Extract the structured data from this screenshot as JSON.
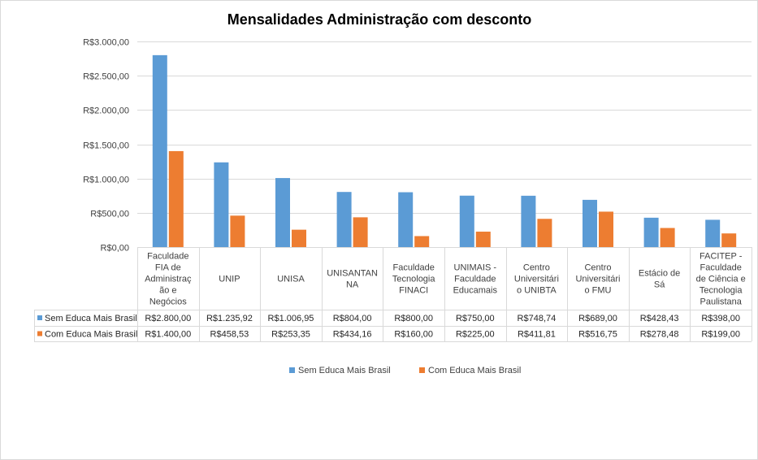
{
  "chart_data": {
    "type": "bar",
    "title": "Mensalidades Administração com desconto",
    "categories": [
      [
        "Faculdade",
        "FIA de",
        "Administraç",
        "ão e",
        "Negócios"
      ],
      [
        "UNIP"
      ],
      [
        "UNISA"
      ],
      [
        "UNISANTAN",
        "NA"
      ],
      [
        "Faculdade",
        "Tecnologia",
        "FINACI"
      ],
      [
        "UNIMAIS -",
        "Faculdade",
        "Educamais"
      ],
      [
        "Centro",
        "Universitári",
        "o UNIBTA"
      ],
      [
        "Centro",
        "Universitári",
        "o FMU"
      ],
      [
        "Estácio de",
        "Sá"
      ],
      [
        "FACITEP -",
        "Faculdade",
        "de Ciência e",
        "Tecnologia",
        "Paulistana"
      ]
    ],
    "series": [
      {
        "name": "Sem Educa Mais Brasil",
        "color": "#5b9bd5",
        "values": [
          2800.0,
          1235.92,
          1006.95,
          804.0,
          800.0,
          750.0,
          748.74,
          689.0,
          428.43,
          398.0
        ],
        "labels": [
          "R$2.800,00",
          "R$1.235,92",
          "R$1.006,95",
          "R$804,00",
          "R$800,00",
          "R$750,00",
          "R$748,74",
          "R$689,00",
          "R$428,43",
          "R$398,00"
        ]
      },
      {
        "name": "Com Educa Mais Brasil",
        "color": "#ed7d31",
        "values": [
          1400.0,
          458.53,
          253.35,
          434.16,
          160.0,
          225.0,
          411.81,
          516.75,
          278.48,
          199.0
        ],
        "labels": [
          "R$1.400,00",
          "R$458,53",
          "R$253,35",
          "R$434,16",
          "R$160,00",
          "R$225,00",
          "R$411,81",
          "R$516,75",
          "R$278,48",
          "R$199,00"
        ]
      }
    ],
    "ylim": [
      0,
      3000
    ],
    "yticks": [
      {
        "value": 0,
        "label": "R$0,00"
      },
      {
        "value": 500,
        "label": "R$500,00"
      },
      {
        "value": 1000,
        "label": "R$1.000,00"
      },
      {
        "value": 1500,
        "label": "R$1.500,00"
      },
      {
        "value": 2000,
        "label": "R$2.000,00"
      },
      {
        "value": 2500,
        "label": "R$2.500,00"
      },
      {
        "value": 3000,
        "label": "R$3.000,00"
      }
    ],
    "grid": true,
    "data_table": true,
    "legend_position": "bottom"
  }
}
